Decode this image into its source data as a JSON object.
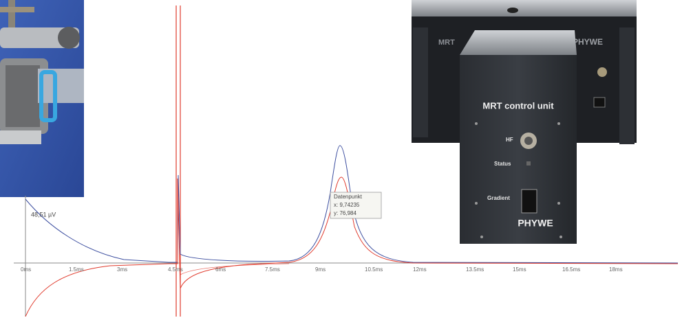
{
  "device": {
    "title": "MRT control unit",
    "hf": "HF",
    "status": "Status",
    "gradient": "Gradient",
    "brand": "PHYWE",
    "back_brand": "PHYWE"
  },
  "plot": {
    "y_label": "48,51 µV",
    "x_ticks": [
      "0ms",
      "1.5ms",
      "3ms",
      "4.5ms",
      "6ms",
      "7.5ms",
      "9ms",
      "10.5ms",
      "12ms",
      "13.5ms",
      "15ms",
      "16.5ms",
      "18ms"
    ],
    "tooltip": {
      "title": "Datenpunkt",
      "x": "x: 9,74235",
      "y": "y: 76,984"
    }
  }
}
